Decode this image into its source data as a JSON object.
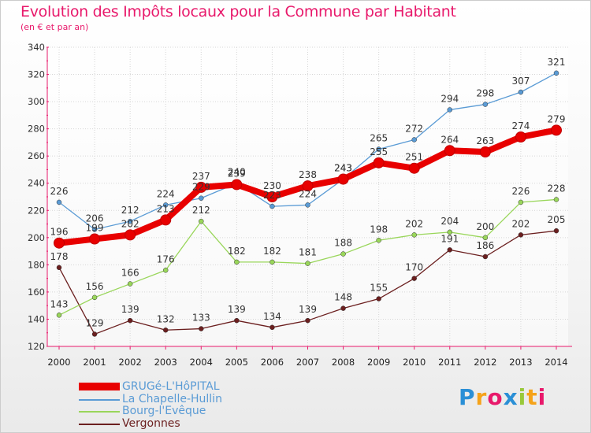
{
  "title": "Evolution des Impôts locaux pour la Commune par Habitant",
  "subtitle": "(en € et par an)",
  "chart_data": {
    "type": "line",
    "title": "Evolution des Impôts locaux pour la Commune par Habitant",
    "subtitle": "(en € et par an)",
    "xlabel": "",
    "ylabel": "",
    "x": [
      "2000",
      "2001",
      "2002",
      "2003",
      "2004",
      "2005",
      "2006",
      "2007",
      "2008",
      "2009",
      "2010",
      "2011",
      "2012",
      "2013",
      "2014"
    ],
    "ylim": [
      120,
      340
    ],
    "yticks": [
      120,
      140,
      160,
      180,
      200,
      220,
      240,
      260,
      280,
      300,
      320,
      340
    ],
    "grid": true,
    "legend_position": "bottom-left",
    "series": [
      {
        "name": "GRUGé-L'HôPITAL",
        "color": "#e80000",
        "values": [
          196,
          199,
          202,
          213,
          237,
          239,
          230,
          238,
          243,
          255,
          251,
          264,
          263,
          274,
          279
        ]
      },
      {
        "name": "La Chapelle-Hullin",
        "color": "#5a9bd5",
        "values": [
          226,
          206,
          212,
          224,
          229,
          240,
          223,
          224,
          243,
          265,
          272,
          294,
          298,
          307,
          321
        ]
      },
      {
        "name": "Bourg-l'Evêque",
        "color": "#99d65a",
        "values": [
          143,
          156,
          166,
          176,
          212,
          182,
          182,
          181,
          188,
          198,
          202,
          204,
          200,
          226,
          228
        ]
      },
      {
        "name": "Vergonnes",
        "color": "#6b1f1f",
        "values": [
          178,
          129,
          139,
          132,
          133,
          139,
          134,
          139,
          148,
          155,
          170,
          191,
          186,
          202,
          205
        ]
      }
    ]
  },
  "legend": [
    {
      "label": "GRUGé-L'HôPITAL",
      "color": "#e80000"
    },
    {
      "label": "La Chapelle-Hullin",
      "color": "#5a9bd5"
    },
    {
      "label": "Bourg-l'Evêque",
      "color": "#99d65a"
    },
    {
      "label": "Vergonnes",
      "color": "#6b1f1f"
    }
  ],
  "logo": {
    "letters": [
      "P",
      "r",
      "o",
      "x",
      "i",
      "t",
      "i"
    ],
    "colors": [
      "#2a8fd6",
      "#f5a31a",
      "#e8196b",
      "#2a8fd6",
      "#99c93a",
      "#f5a31a",
      "#e8196b"
    ]
  }
}
